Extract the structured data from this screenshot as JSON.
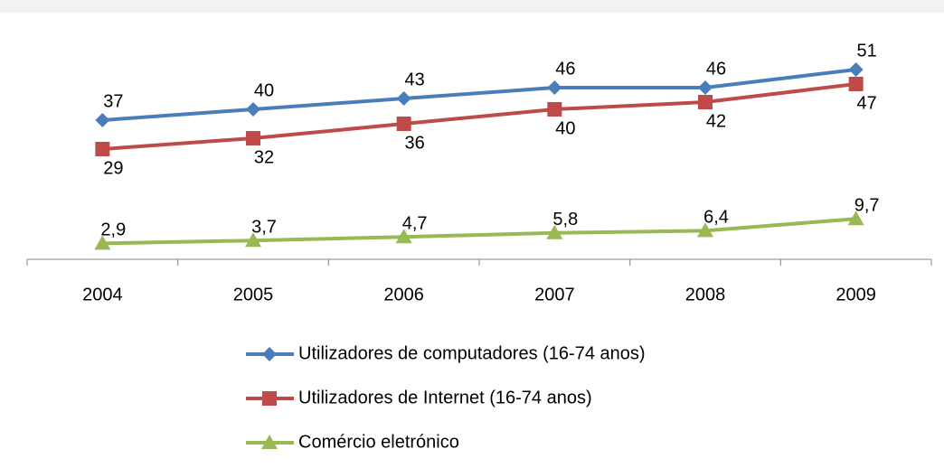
{
  "chart_data": {
    "type": "line",
    "categories": [
      "2004",
      "2005",
      "2006",
      "2007",
      "2008",
      "2009"
    ],
    "series": [
      {
        "name": "Utilizadores de computadores (16-74 anos)",
        "color": "#4a7ebb",
        "marker": "diamond",
        "values": [
          37,
          40,
          43,
          46,
          46,
          51
        ]
      },
      {
        "name": "Utilizadores de Internet (16-74 anos)",
        "color": "#be4b48",
        "marker": "square",
        "values": [
          29,
          32,
          36,
          40,
          42,
          47
        ]
      },
      {
        "name": "Comércio eletrónico",
        "color": "#98b954",
        "marker": "triangle",
        "values": [
          2.9,
          3.7,
          4.7,
          5.8,
          6.4,
          9.7
        ],
        "value_labels": [
          "2,9",
          "3,7",
          "4,7",
          "5,8",
          "6,4",
          "9,7"
        ]
      }
    ],
    "ylim": [
      0,
      60
    ],
    "grid": false,
    "legend": "bottom"
  }
}
